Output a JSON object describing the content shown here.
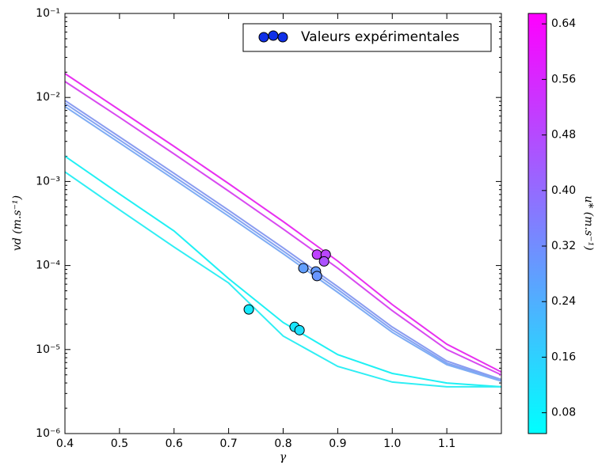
{
  "chart_data": {
    "type": "line",
    "xlabel": "γ",
    "ylabel": "vd (m.s⁻¹)",
    "xlim": [
      0.4,
      1.2
    ],
    "xticks": [
      0.4,
      0.5,
      0.6,
      0.7,
      0.8,
      0.9,
      {
        "value": 1,
        "label": "1.0"
      },
      1.1
    ],
    "ylim": [
      1e-06,
      0.1
    ],
    "yscale": "log",
    "yticks": [
      {
        "value": 0.1,
        "label": "10⁻¹"
      },
      {
        "value": 0.01,
        "label": "10⁻²"
      },
      {
        "value": 0.001,
        "label": "10⁻³"
      },
      {
        "value": 0.0001,
        "label": "10⁻⁴"
      },
      {
        "value": 1e-05,
        "label": "10⁻⁵"
      },
      {
        "value": 1e-06,
        "label": "10⁻⁶"
      }
    ],
    "x": [
      0.4,
      0.5,
      0.6,
      0.7,
      0.8,
      0.9,
      1.0,
      1.1,
      1.2
    ],
    "series": [
      {
        "color": "#e830f0",
        "values": [
          0.01923,
          0.0071,
          0.00262,
          0.000946,
          0.000334,
          0.000113,
          3.43e-05,
          1.16e-05,
          5.4e-06
        ]
      },
      {
        "color": "#d84af0",
        "values": [
          0.0155,
          0.0058,
          0.00213,
          0.00077,
          0.000272,
          9.3e-05,
          2.9e-05,
          1e-05,
          5e-06
        ]
      },
      {
        "color": "#8a9cf0",
        "values": [
          0.0092,
          0.0034,
          0.00125,
          0.000455,
          0.000162,
          5.6e-05,
          1.85e-05,
          7.3e-06,
          4.4e-06
        ]
      },
      {
        "color": "#84a4f2",
        "values": [
          0.0085,
          0.00313,
          0.00115,
          0.00042,
          0.000149,
          5.2e-05,
          1.72e-05,
          6.9e-06,
          4.3e-06
        ]
      },
      {
        "color": "#7eacf4",
        "values": [
          0.0078,
          0.00288,
          0.00106,
          0.000387,
          0.000138,
          4.8e-05,
          1.6e-05,
          6.6e-06,
          4.2e-06
        ]
      },
      {
        "color": "#20f0f4",
        "values": [
          0.002,
          0.00071,
          0.000258,
          7e-05,
          2.1e-05,
          8.7e-06,
          5.2e-06,
          4e-06,
          3.6e-06
        ]
      },
      {
        "color": "#30eef4",
        "values": [
          0.0013,
          0.00046,
          0.000166,
          6.2e-05,
          1.45e-05,
          6.3e-06,
          4.1e-06,
          3.6e-06,
          3.6e-06
        ]
      }
    ],
    "scatter": {
      "name": "Valeurs expérimentales",
      "legend_color": "#1030e8",
      "x": [
        0.862,
        0.878,
        0.875,
        0.837,
        0.86,
        0.862,
        0.737,
        0.821,
        0.83
      ],
      "y": [
        0.000135,
        0.000135,
        0.000112,
        9.3e-05,
        8.5e-05,
        7.5e-05,
        3e-05,
        1.86e-05,
        1.7e-05
      ],
      "c": [
        0.5,
        0.49,
        0.46,
        0.28,
        0.29,
        0.3,
        0.1,
        0.11,
        0.12
      ]
    },
    "colorbar": {
      "label": "u* (m.s⁻¹)",
      "colormap": [
        "#00ffff",
        "#ff00ff"
      ],
      "lim": [
        0.05,
        0.655
      ],
      "ticks": [
        0.08,
        0.16,
        0.24,
        0.32,
        {
          "value": 0.4,
          "label": "0.40"
        },
        0.48,
        0.56,
        0.64
      ]
    },
    "legend": "upper right"
  }
}
